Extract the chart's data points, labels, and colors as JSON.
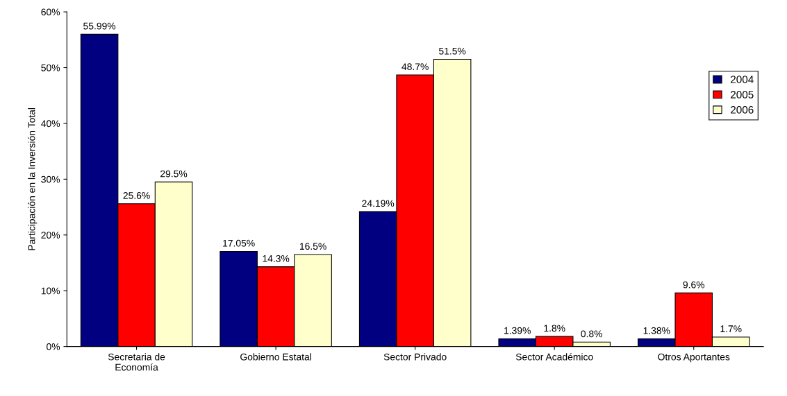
{
  "chart_data": {
    "type": "bar",
    "ylabel": "Participación en la Inversión Total",
    "categories": [
      "Secretaria de\nEconomía",
      "Gobierno Estatal",
      "Sector Privado",
      "Sector Académico",
      "Otros Aportantes"
    ],
    "series": [
      {
        "name": "2004",
        "color": "#000080",
        "values": [
          55.99,
          17.05,
          24.19,
          1.39,
          1.38
        ],
        "value_labels": [
          "55.99%",
          "17.05%",
          "24.19%",
          "1.39%",
          "1.38%"
        ]
      },
      {
        "name": "2005",
        "color": "#ff0000",
        "values": [
          25.6,
          14.3,
          48.7,
          1.8,
          9.6
        ],
        "value_labels": [
          "25.6%",
          "14.3%",
          "48.7%",
          "1.8%",
          "9.6%"
        ]
      },
      {
        "name": "2006",
        "color": "#ffffcc",
        "values": [
          29.5,
          16.5,
          51.5,
          0.8,
          1.7
        ],
        "value_labels": [
          "29.5%",
          "16.5%",
          "51.5%",
          "0.8%",
          "1.7%"
        ]
      }
    ],
    "ylim": [
      0,
      60
    ],
    "yticks": [
      {
        "value": 0,
        "label": "0%"
      },
      {
        "value": 10,
        "label": "10%"
      },
      {
        "value": 20,
        "label": "20%"
      },
      {
        "value": 30,
        "label": "30%"
      },
      {
        "value": 40,
        "label": "40%"
      },
      {
        "value": 50,
        "label": "50%"
      },
      {
        "value": 60,
        "label": "60%"
      }
    ],
    "legend": "right",
    "grid": false
  }
}
